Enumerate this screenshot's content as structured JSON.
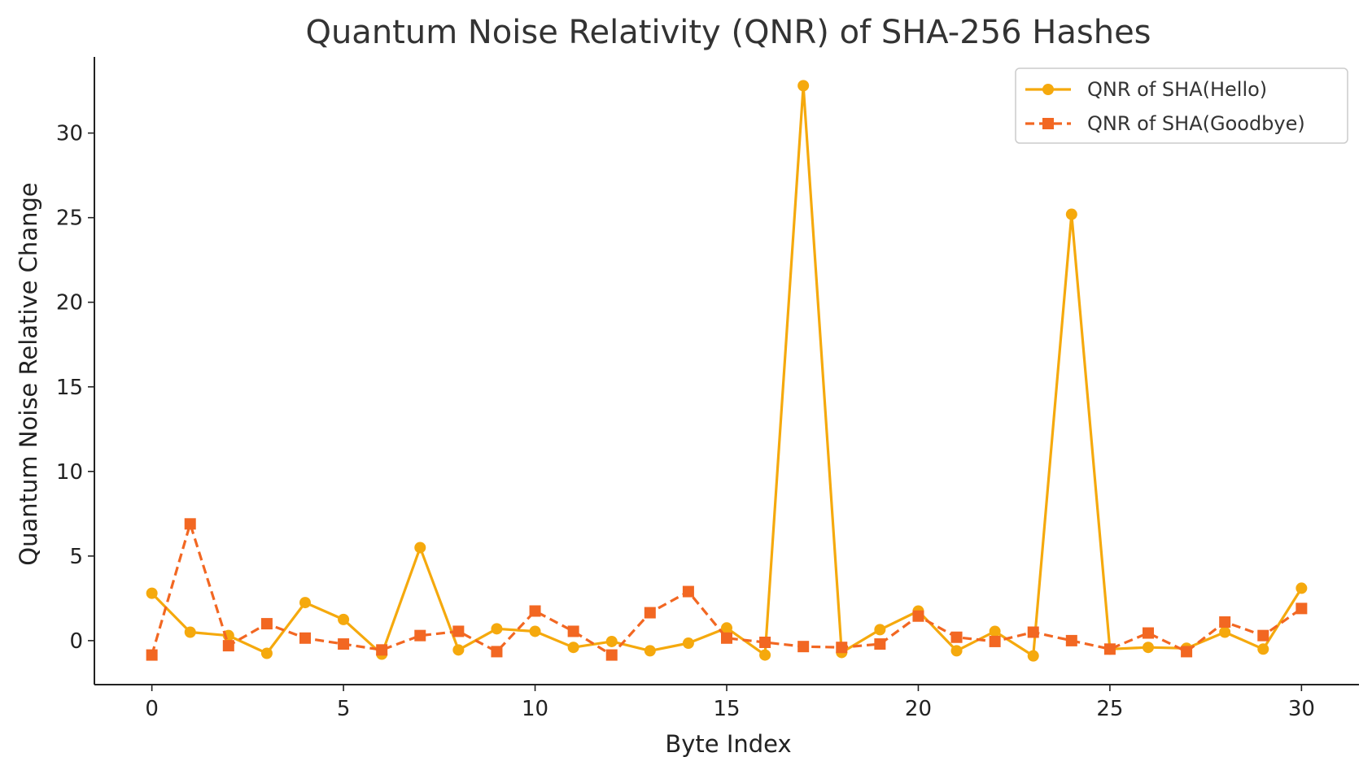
{
  "chart_data": {
    "type": "line",
    "title": "Quantum Noise Relativity (QNR) of SHA-256 Hashes",
    "xlabel": "Byte Index",
    "ylabel": "Quantum Noise Relative Change",
    "xlim": [
      -1.5,
      31.5
    ],
    "ylim": [
      -2.6,
      34.5
    ],
    "xticks": [
      0,
      5,
      10,
      15,
      20,
      25,
      30
    ],
    "yticks": [
      0,
      5,
      10,
      15,
      20,
      25,
      30
    ],
    "grid": false,
    "legend_position": "top-right",
    "x": [
      0,
      1,
      2,
      3,
      4,
      5,
      6,
      7,
      8,
      9,
      10,
      11,
      12,
      13,
      14,
      15,
      16,
      17,
      18,
      19,
      20,
      21,
      22,
      23,
      24,
      25,
      26,
      27,
      28,
      29,
      30
    ],
    "series": [
      {
        "name": "QNR of SHA(Hello)",
        "color": "#F5A90D",
        "line_style": "solid",
        "marker": "circle",
        "values": [
          2.8,
          0.5,
          0.3,
          -0.75,
          2.25,
          1.25,
          -0.8,
          5.5,
          -0.55,
          0.7,
          0.55,
          -0.4,
          -0.05,
          -0.6,
          -0.15,
          0.75,
          -0.85,
          32.8,
          -0.7,
          0.65,
          1.75,
          -0.6,
          0.55,
          -0.9,
          25.2,
          -0.5,
          -0.4,
          -0.45,
          0.5,
          -0.5,
          3.1
        ]
      },
      {
        "name": "QNR of SHA(Goodbye)",
        "color": "#F26722",
        "line_style": "dashed",
        "marker": "square",
        "values": [
          -0.85,
          6.9,
          -0.3,
          1.0,
          0.15,
          -0.2,
          -0.55,
          0.3,
          0.55,
          -0.65,
          1.75,
          0.55,
          -0.85,
          1.65,
          2.9,
          0.15,
          -0.1,
          -0.35,
          -0.4,
          -0.2,
          1.45,
          0.2,
          -0.05,
          0.5,
          0.0,
          -0.5,
          0.45,
          -0.65,
          1.1,
          0.3,
          1.9
        ]
      }
    ]
  }
}
